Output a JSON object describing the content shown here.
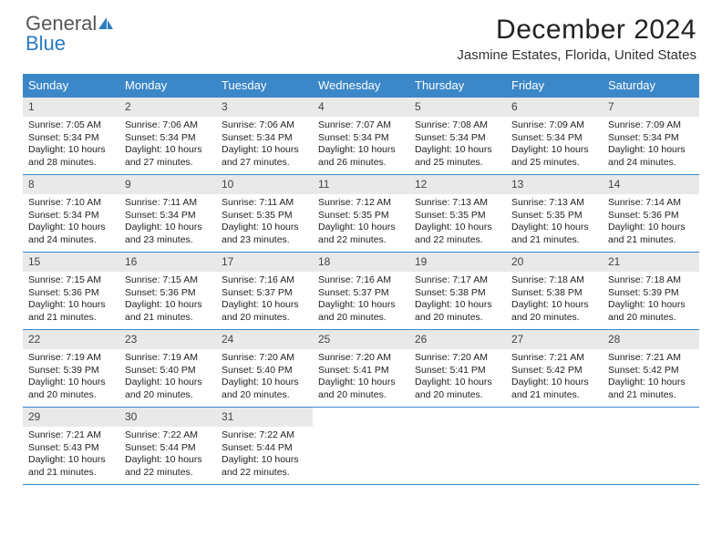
{
  "brand": {
    "part1": "General",
    "part2": "Blue"
  },
  "title": "December 2024",
  "location": "Jasmine Estates, Florida, United States",
  "colors": {
    "header_bg": "#3b87c8",
    "daynum_bg": "#e9e9e9",
    "border": "#3b87c8",
    "text": "#1a1a1a",
    "brand_gray": "#555555",
    "brand_blue": "#2a7bbf"
  },
  "typography": {
    "title_fontsize": 30,
    "location_fontsize": 15,
    "dayhead_fontsize": 13,
    "cell_fontsize": 10.5
  },
  "day_headers": [
    "Sunday",
    "Monday",
    "Tuesday",
    "Wednesday",
    "Thursday",
    "Friday",
    "Saturday"
  ],
  "weeks": [
    [
      {
        "num": "1",
        "sunrise": "7:05 AM",
        "sunset": "5:34 PM",
        "daylight": "10 hours and 28 minutes."
      },
      {
        "num": "2",
        "sunrise": "7:06 AM",
        "sunset": "5:34 PM",
        "daylight": "10 hours and 27 minutes."
      },
      {
        "num": "3",
        "sunrise": "7:06 AM",
        "sunset": "5:34 PM",
        "daylight": "10 hours and 27 minutes."
      },
      {
        "num": "4",
        "sunrise": "7:07 AM",
        "sunset": "5:34 PM",
        "daylight": "10 hours and 26 minutes."
      },
      {
        "num": "5",
        "sunrise": "7:08 AM",
        "sunset": "5:34 PM",
        "daylight": "10 hours and 25 minutes."
      },
      {
        "num": "6",
        "sunrise": "7:09 AM",
        "sunset": "5:34 PM",
        "daylight": "10 hours and 25 minutes."
      },
      {
        "num": "7",
        "sunrise": "7:09 AM",
        "sunset": "5:34 PM",
        "daylight": "10 hours and 24 minutes."
      }
    ],
    [
      {
        "num": "8",
        "sunrise": "7:10 AM",
        "sunset": "5:34 PM",
        "daylight": "10 hours and 24 minutes."
      },
      {
        "num": "9",
        "sunrise": "7:11 AM",
        "sunset": "5:34 PM",
        "daylight": "10 hours and 23 minutes."
      },
      {
        "num": "10",
        "sunrise": "7:11 AM",
        "sunset": "5:35 PM",
        "daylight": "10 hours and 23 minutes."
      },
      {
        "num": "11",
        "sunrise": "7:12 AM",
        "sunset": "5:35 PM",
        "daylight": "10 hours and 22 minutes."
      },
      {
        "num": "12",
        "sunrise": "7:13 AM",
        "sunset": "5:35 PM",
        "daylight": "10 hours and 22 minutes."
      },
      {
        "num": "13",
        "sunrise": "7:13 AM",
        "sunset": "5:35 PM",
        "daylight": "10 hours and 21 minutes."
      },
      {
        "num": "14",
        "sunrise": "7:14 AM",
        "sunset": "5:36 PM",
        "daylight": "10 hours and 21 minutes."
      }
    ],
    [
      {
        "num": "15",
        "sunrise": "7:15 AM",
        "sunset": "5:36 PM",
        "daylight": "10 hours and 21 minutes."
      },
      {
        "num": "16",
        "sunrise": "7:15 AM",
        "sunset": "5:36 PM",
        "daylight": "10 hours and 21 minutes."
      },
      {
        "num": "17",
        "sunrise": "7:16 AM",
        "sunset": "5:37 PM",
        "daylight": "10 hours and 20 minutes."
      },
      {
        "num": "18",
        "sunrise": "7:16 AM",
        "sunset": "5:37 PM",
        "daylight": "10 hours and 20 minutes."
      },
      {
        "num": "19",
        "sunrise": "7:17 AM",
        "sunset": "5:38 PM",
        "daylight": "10 hours and 20 minutes."
      },
      {
        "num": "20",
        "sunrise": "7:18 AM",
        "sunset": "5:38 PM",
        "daylight": "10 hours and 20 minutes."
      },
      {
        "num": "21",
        "sunrise": "7:18 AM",
        "sunset": "5:39 PM",
        "daylight": "10 hours and 20 minutes."
      }
    ],
    [
      {
        "num": "22",
        "sunrise": "7:19 AM",
        "sunset": "5:39 PM",
        "daylight": "10 hours and 20 minutes."
      },
      {
        "num": "23",
        "sunrise": "7:19 AM",
        "sunset": "5:40 PM",
        "daylight": "10 hours and 20 minutes."
      },
      {
        "num": "24",
        "sunrise": "7:20 AM",
        "sunset": "5:40 PM",
        "daylight": "10 hours and 20 minutes."
      },
      {
        "num": "25",
        "sunrise": "7:20 AM",
        "sunset": "5:41 PM",
        "daylight": "10 hours and 20 minutes."
      },
      {
        "num": "26",
        "sunrise": "7:20 AM",
        "sunset": "5:41 PM",
        "daylight": "10 hours and 20 minutes."
      },
      {
        "num": "27",
        "sunrise": "7:21 AM",
        "sunset": "5:42 PM",
        "daylight": "10 hours and 21 minutes."
      },
      {
        "num": "28",
        "sunrise": "7:21 AM",
        "sunset": "5:42 PM",
        "daylight": "10 hours and 21 minutes."
      }
    ],
    [
      {
        "num": "29",
        "sunrise": "7:21 AM",
        "sunset": "5:43 PM",
        "daylight": "10 hours and 21 minutes."
      },
      {
        "num": "30",
        "sunrise": "7:22 AM",
        "sunset": "5:44 PM",
        "daylight": "10 hours and 22 minutes."
      },
      {
        "num": "31",
        "sunrise": "7:22 AM",
        "sunset": "5:44 PM",
        "daylight": "10 hours and 22 minutes."
      },
      {
        "empty": true
      },
      {
        "empty": true
      },
      {
        "empty": true
      },
      {
        "empty": true
      }
    ]
  ],
  "labels": {
    "sunrise_prefix": "Sunrise: ",
    "sunset_prefix": "Sunset: ",
    "daylight_prefix": "Daylight: "
  }
}
